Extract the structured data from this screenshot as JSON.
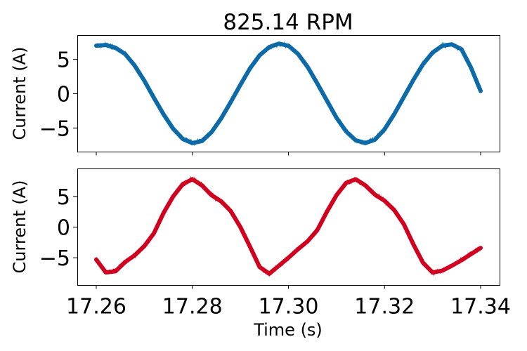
{
  "chart_data": {
    "type": "line",
    "title": "825.14 RPM",
    "xlabel": "Time (s)",
    "xlim": [
      17.26,
      17.34
    ],
    "xticks": [
      17.26,
      17.28,
      17.3,
      17.32,
      17.34
    ],
    "xtick_labels": [
      "17.26",
      "17.28",
      "17.30",
      "17.32",
      "17.34"
    ],
    "grid": false,
    "legend": false,
    "panels": [
      {
        "ylabel": "Current (A)",
        "ylim": [
          -8.5,
          8.5
        ],
        "yticks": [
          -5,
          0,
          5
        ],
        "ytick_labels": [
          "−5",
          "0",
          "5"
        ],
        "series": [
          {
            "color": "#0c6aa8",
            "x": [
              17.26,
              17.262,
              17.264,
              17.266,
              17.268,
              17.27,
              17.272,
              17.274,
              17.276,
              17.278,
              17.28,
              17.282,
              17.284,
              17.286,
              17.288,
              17.29,
              17.292,
              17.294,
              17.296,
              17.298,
              17.3,
              17.302,
              17.304,
              17.306,
              17.308,
              17.31,
              17.312,
              17.314,
              17.316,
              17.318,
              17.32,
              17.322,
              17.324,
              17.326,
              17.328,
              17.33,
              17.332,
              17.334,
              17.336,
              17.338,
              17.34
            ],
            "y": [
              7.0,
              7.1,
              6.7,
              5.8,
              4.1,
              1.9,
              -0.6,
              -3.0,
              -5.1,
              -6.6,
              -7.2,
              -6.9,
              -5.6,
              -3.6,
              -1.2,
              1.3,
              3.7,
              5.6,
              6.8,
              7.3,
              7.0,
              5.8,
              3.9,
              1.5,
              -1.0,
              -3.5,
              -5.5,
              -6.8,
              -7.2,
              -6.7,
              -5.2,
              -3.0,
              -0.5,
              2.0,
              4.3,
              6.0,
              7.0,
              7.2,
              6.5,
              3.8,
              0.4
            ]
          }
        ]
      },
      {
        "ylabel": "Current (A)",
        "ylim": [
          -9.5,
          9.5
        ],
        "yticks": [
          -5,
          0,
          5
        ],
        "ytick_labels": [
          "−5",
          "0",
          "5"
        ],
        "series": [
          {
            "color": "#d1001f",
            "x": [
              17.26,
              17.262,
              17.264,
              17.266,
              17.268,
              17.27,
              17.272,
              17.274,
              17.276,
              17.278,
              17.28,
              17.282,
              17.284,
              17.286,
              17.288,
              17.29,
              17.292,
              17.294,
              17.296,
              17.298,
              17.3,
              17.302,
              17.304,
              17.306,
              17.308,
              17.31,
              17.312,
              17.314,
              17.316,
              17.318,
              17.32,
              17.322,
              17.324,
              17.326,
              17.328,
              17.33,
              17.332,
              17.334,
              17.336,
              17.338,
              17.34
            ],
            "y": [
              -5.3,
              -7.4,
              -7.2,
              -5.7,
              -4.6,
              -3.1,
              -1.0,
              2.3,
              5.0,
              7.0,
              7.8,
              6.8,
              5.2,
              4.2,
              2.6,
              0.0,
              -3.2,
              -6.5,
              -7.6,
              -6.3,
              -5.0,
              -3.6,
              -2.3,
              -0.5,
              2.5,
              5.2,
              7.2,
              7.8,
              6.8,
              5.3,
              4.3,
              2.8,
              0.5,
              -2.8,
              -5.8,
              -7.4,
              -7.1,
              -6.3,
              -5.4,
              -4.4,
              -3.4
            ]
          }
        ]
      }
    ]
  }
}
